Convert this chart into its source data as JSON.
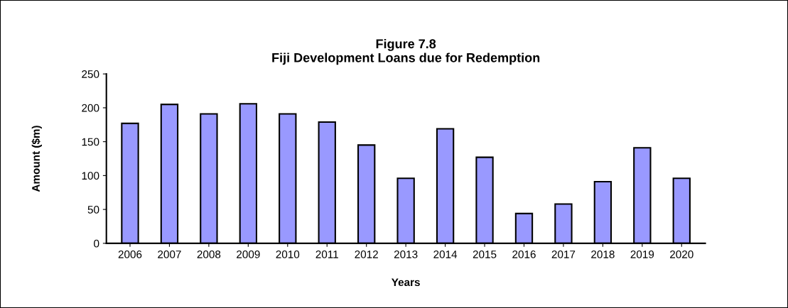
{
  "chart_data": {
    "type": "bar",
    "title": "Figure 7.8\nFiji Development Loans due for Redemption",
    "xlabel": "Years",
    "ylabel": "Amount ($m)",
    "categories": [
      "2006",
      "2007",
      "2008",
      "2009",
      "2010",
      "2011",
      "2012",
      "2013",
      "2014",
      "2015",
      "2016",
      "2017",
      "2018",
      "2019",
      "2020"
    ],
    "values": [
      177,
      205,
      191,
      206,
      191,
      179,
      145,
      96,
      169,
      127,
      44,
      58,
      91,
      141,
      96
    ],
    "color": "#9999ff",
    "ylim": [
      0,
      250
    ],
    "yticks": [
      0,
      50,
      100,
      150,
      200,
      250
    ],
    "grid": false,
    "legend": false
  }
}
